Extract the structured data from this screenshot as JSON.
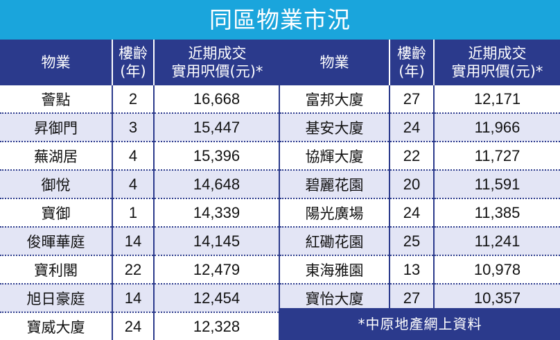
{
  "title": "同區物業市況",
  "headers": {
    "property": "物業",
    "age_line1": "樓齡",
    "age_line2": "(年)",
    "price_line1": "近期成交",
    "price_line2": "實用呎價(元)*"
  },
  "left_rows": [
    {
      "name": "薈點",
      "age": "2",
      "price": "16,668"
    },
    {
      "name": "昇御門",
      "age": "3",
      "price": "15,447"
    },
    {
      "name": "蕪湖居",
      "age": "4",
      "price": "15,396"
    },
    {
      "name": "御悅",
      "age": "4",
      "price": "14,648"
    },
    {
      "name": "寶御",
      "age": "1",
      "price": "14,339"
    },
    {
      "name": "俊暉華庭",
      "age": "14",
      "price": "14,145"
    },
    {
      "name": "寶利閣",
      "age": "22",
      "price": "12,479"
    },
    {
      "name": "旭日豪庭",
      "age": "14",
      "price": "12,454"
    },
    {
      "name": "寶威大廈",
      "age": "24",
      "price": "12,328"
    }
  ],
  "right_rows": [
    {
      "name": "富邦大廈",
      "age": "27",
      "price": "12,171"
    },
    {
      "name": "基安大廈",
      "age": "24",
      "price": "11,966"
    },
    {
      "name": "協輝大廈",
      "age": "22",
      "price": "11,727"
    },
    {
      "name": "碧麗花園",
      "age": "20",
      "price": "11,591"
    },
    {
      "name": "陽光廣場",
      "age": "24",
      "price": "11,385"
    },
    {
      "name": "紅磡花園",
      "age": "25",
      "price": "11,241"
    },
    {
      "name": "東海雅園",
      "age": "13",
      "price": "10,978"
    },
    {
      "name": "寶怡大廈",
      "age": "27",
      "price": "10,357"
    }
  ],
  "source": "*中原地產網上資料",
  "colors": {
    "title_bg": "#1aa5dc",
    "header_bg": "#2b3a8c",
    "stripe": "#e3e5f5"
  }
}
